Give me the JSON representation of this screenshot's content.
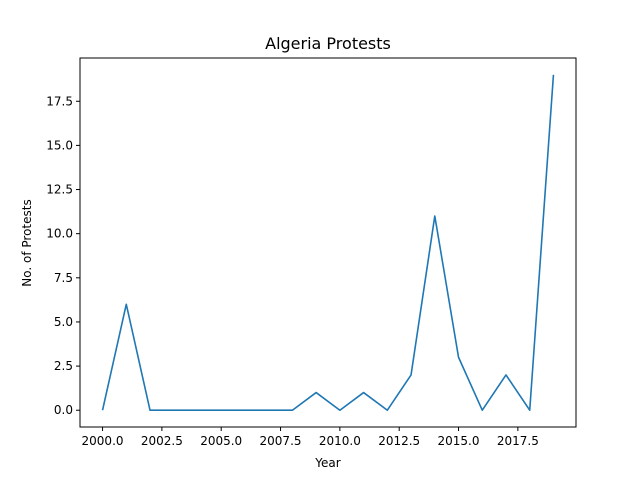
{
  "chart_data": {
    "type": "line",
    "title": "Algeria Protests",
    "xlabel": "Year",
    "ylabel": "No. of Protests",
    "xlim": [
      1999.05,
      2019.95
    ],
    "ylim": [
      -0.95,
      19.95
    ],
    "xticks": [
      2000.0,
      2002.5,
      2005.0,
      2007.5,
      2010.0,
      2012.5,
      2015.0,
      2017.5
    ],
    "xtick_labels": [
      "2000.0",
      "2002.5",
      "2005.0",
      "2007.5",
      "2010.0",
      "2012.5",
      "2015.0",
      "2017.5"
    ],
    "yticks": [
      0.0,
      2.5,
      5.0,
      7.5,
      10.0,
      12.5,
      15.0,
      17.5
    ],
    "ytick_labels": [
      "0.0",
      "2.5",
      "5.0",
      "7.5",
      "10.0",
      "12.5",
      "15.0",
      "17.5"
    ],
    "grid": false,
    "series": [
      {
        "color": "#1f77b4",
        "x": [
          2000,
          2001,
          2002,
          2003,
          2004,
          2005,
          2006,
          2007,
          2008,
          2009,
          2010,
          2011,
          2012,
          2013,
          2014,
          2015,
          2016,
          2017,
          2018,
          2019
        ],
        "y": [
          0,
          6,
          0,
          0,
          0,
          0,
          0,
          0,
          0,
          1,
          0,
          1,
          0,
          2,
          11,
          3,
          0,
          2,
          0,
          19
        ]
      }
    ]
  }
}
